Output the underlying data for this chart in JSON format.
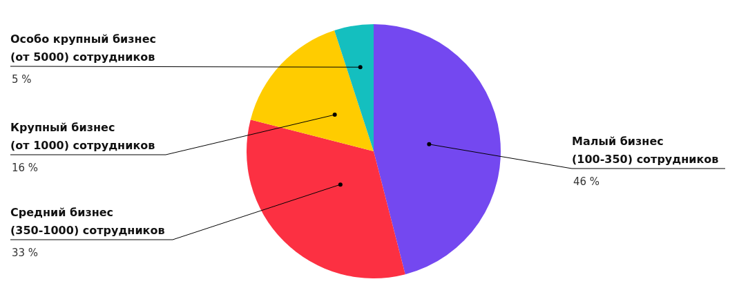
{
  "chart_data": {
    "type": "pie",
    "categories": [
      "Малый бизнес\n(100-350) сотрудников",
      "Средний бизнес\n(350-1000) сотрудников",
      "Крупный бизнес\n(от 1000) сотрудников",
      "Особо крупный бизнес\n(от 5000) сотрудников"
    ],
    "values": [
      46,
      33,
      16,
      5
    ],
    "value_labels": [
      "46 %",
      "33 %",
      "16 %",
      "5 %"
    ],
    "colors": [
      "#7448f0",
      "#fc3042",
      "#ffcc00",
      "#14bfbf"
    ]
  }
}
